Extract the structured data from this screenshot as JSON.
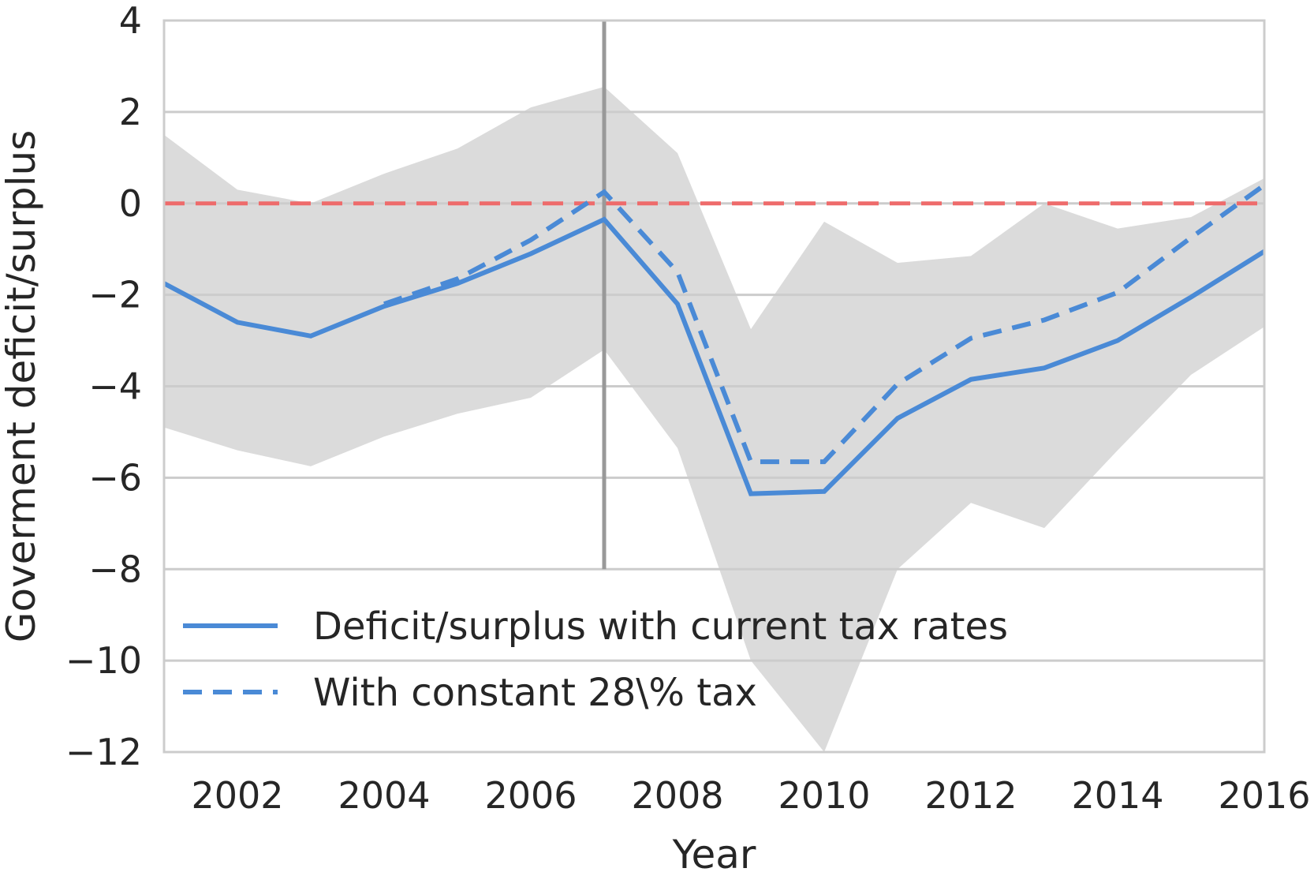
{
  "chart_data": {
    "type": "line",
    "title": "",
    "xlabel": "Year",
    "ylabel": "Goverment deficit/surplus",
    "xlim": [
      2001,
      2016
    ],
    "ylim": [
      -12,
      4
    ],
    "xticks": [
      2002,
      2004,
      2006,
      2008,
      2010,
      2012,
      2014,
      2016
    ],
    "yticks": [
      4,
      2,
      0,
      -2,
      -4,
      -6,
      -8,
      -10,
      -12
    ],
    "ytick_labels": [
      "4",
      "2",
      "0",
      "−2",
      "−4",
      "−6",
      "−8",
      "−10",
      "−12"
    ],
    "grid": true,
    "x": [
      2001,
      2002,
      2003,
      2004,
      2005,
      2006,
      2007,
      2008,
      2009,
      2010,
      2011,
      2012,
      2013,
      2014,
      2015,
      2016
    ],
    "series": [
      {
        "name": "Deficit/surplus with current tax rates",
        "style": "solid",
        "color": "#4a8ad6",
        "values": [
          -1.75,
          -2.6,
          -2.9,
          -2.25,
          -1.75,
          -1.1,
          -0.35,
          -2.2,
          -6.35,
          -6.3,
          -4.7,
          -3.85,
          -3.6,
          -3.0,
          -2.05,
          -1.05
        ]
      },
      {
        "name": "With constant 28\\% tax",
        "style": "dashed",
        "color": "#4a8ad6",
        "values": [
          null,
          null,
          null,
          -2.2,
          -1.65,
          -0.8,
          0.25,
          -1.5,
          -5.65,
          -5.65,
          -3.95,
          -2.95,
          -2.55,
          -1.95,
          -0.75,
          0.4
        ]
      }
    ],
    "band": {
      "color": "#dbdbdb",
      "upper": [
        1.5,
        0.3,
        0.0,
        0.65,
        1.2,
        2.1,
        2.55,
        1.1,
        -2.75,
        -0.4,
        -1.3,
        -1.15,
        0.0,
        -0.55,
        -0.3,
        0.55
      ],
      "lower": [
        -4.9,
        -5.4,
        -5.75,
        -5.1,
        -4.6,
        -4.25,
        -3.2,
        -5.35,
        -10.0,
        -12.0,
        -8.0,
        -6.55,
        -7.1,
        -5.4,
        -3.75,
        -2.7
      ]
    },
    "reference_hline": {
      "y": 0,
      "color": "#ee6b6b",
      "style": "dashed"
    },
    "reference_vline": {
      "x": 2007,
      "y_from": -8,
      "y_to": 4,
      "color": "#999999"
    },
    "legend": {
      "placement": "lower-left"
    }
  }
}
